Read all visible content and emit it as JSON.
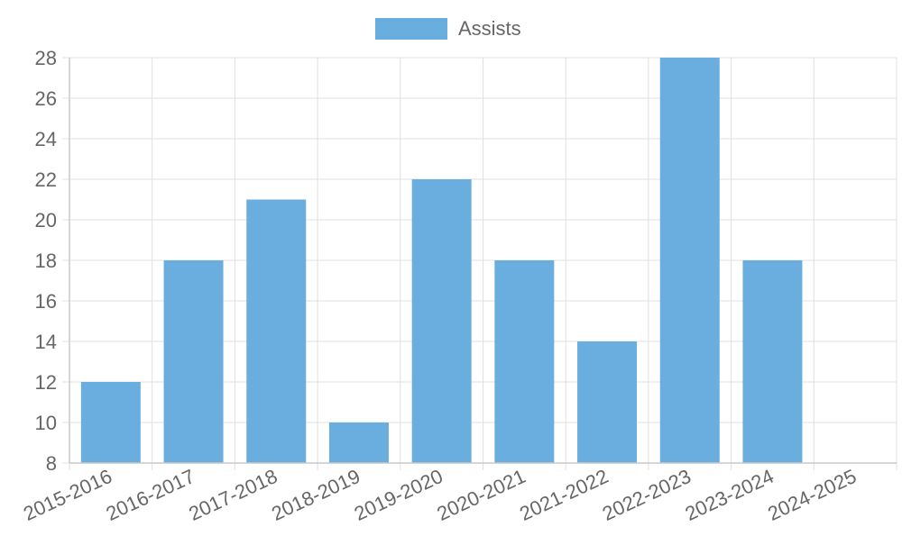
{
  "chart_data": {
    "type": "bar",
    "categories": [
      "2015-2016",
      "2016-2017",
      "2017-2018",
      "2018-2019",
      "2019-2020",
      "2020-2021",
      "2021-2022",
      "2022-2023",
      "2023-2024",
      "2024-2025"
    ],
    "series": [
      {
        "name": "Assists",
        "values": [
          12,
          18,
          21,
          10,
          22,
          18,
          14,
          28,
          18,
          null
        ]
      }
    ],
    "ylim": [
      8,
      28
    ],
    "yticks": [
      8,
      10,
      12,
      14,
      16,
      18,
      20,
      22,
      24,
      26,
      28
    ],
    "grid": true,
    "legend": "top-center",
    "colors": {
      "bar": "#6aaddf",
      "grid": "#e0e0e0",
      "axis": "#c8c8c8",
      "text": "#666666"
    }
  }
}
